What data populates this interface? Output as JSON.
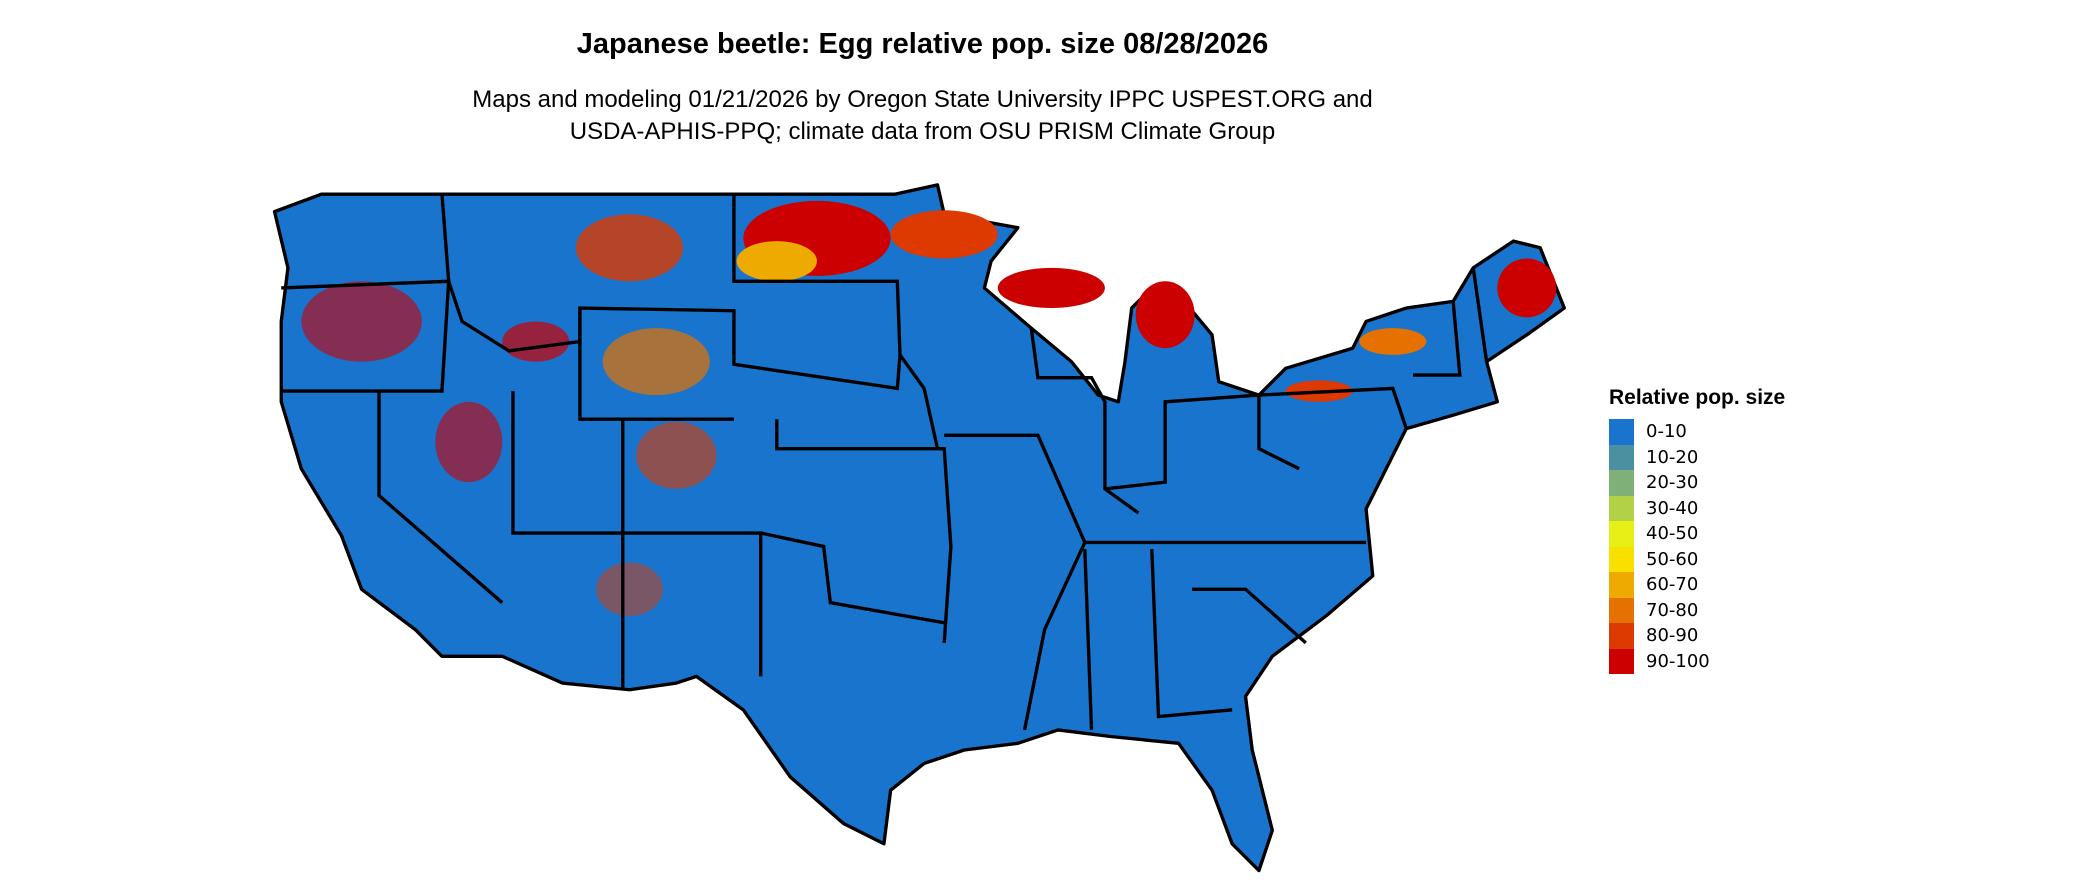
{
  "title": "Japanese beetle: Egg relative pop. size 08/28/2026",
  "subtitle_line1": "Maps and modeling 01/21/2026 by Oregon State University IPPC USPEST.ORG and",
  "subtitle_line2": "USDA-APHIS-PPQ; climate data from OSU PRISM Climate Group",
  "legend": {
    "title": "Relative pop. size",
    "items": [
      {
        "label": "0-10",
        "color": "#1874CD"
      },
      {
        "label": "10-20",
        "color": "#4A90A0"
      },
      {
        "label": "20-30",
        "color": "#7FB077"
      },
      {
        "label": "30-40",
        "color": "#B2D146"
      },
      {
        "label": "40-50",
        "color": "#E6EF16"
      },
      {
        "label": "50-60",
        "color": "#F8E000"
      },
      {
        "label": "60-70",
        "color": "#EEAA00"
      },
      {
        "label": "70-80",
        "color": "#E57200"
      },
      {
        "label": "80-90",
        "color": "#DC3A00"
      },
      {
        "label": "90-100",
        "color": "#CC0000"
      }
    ]
  }
}
